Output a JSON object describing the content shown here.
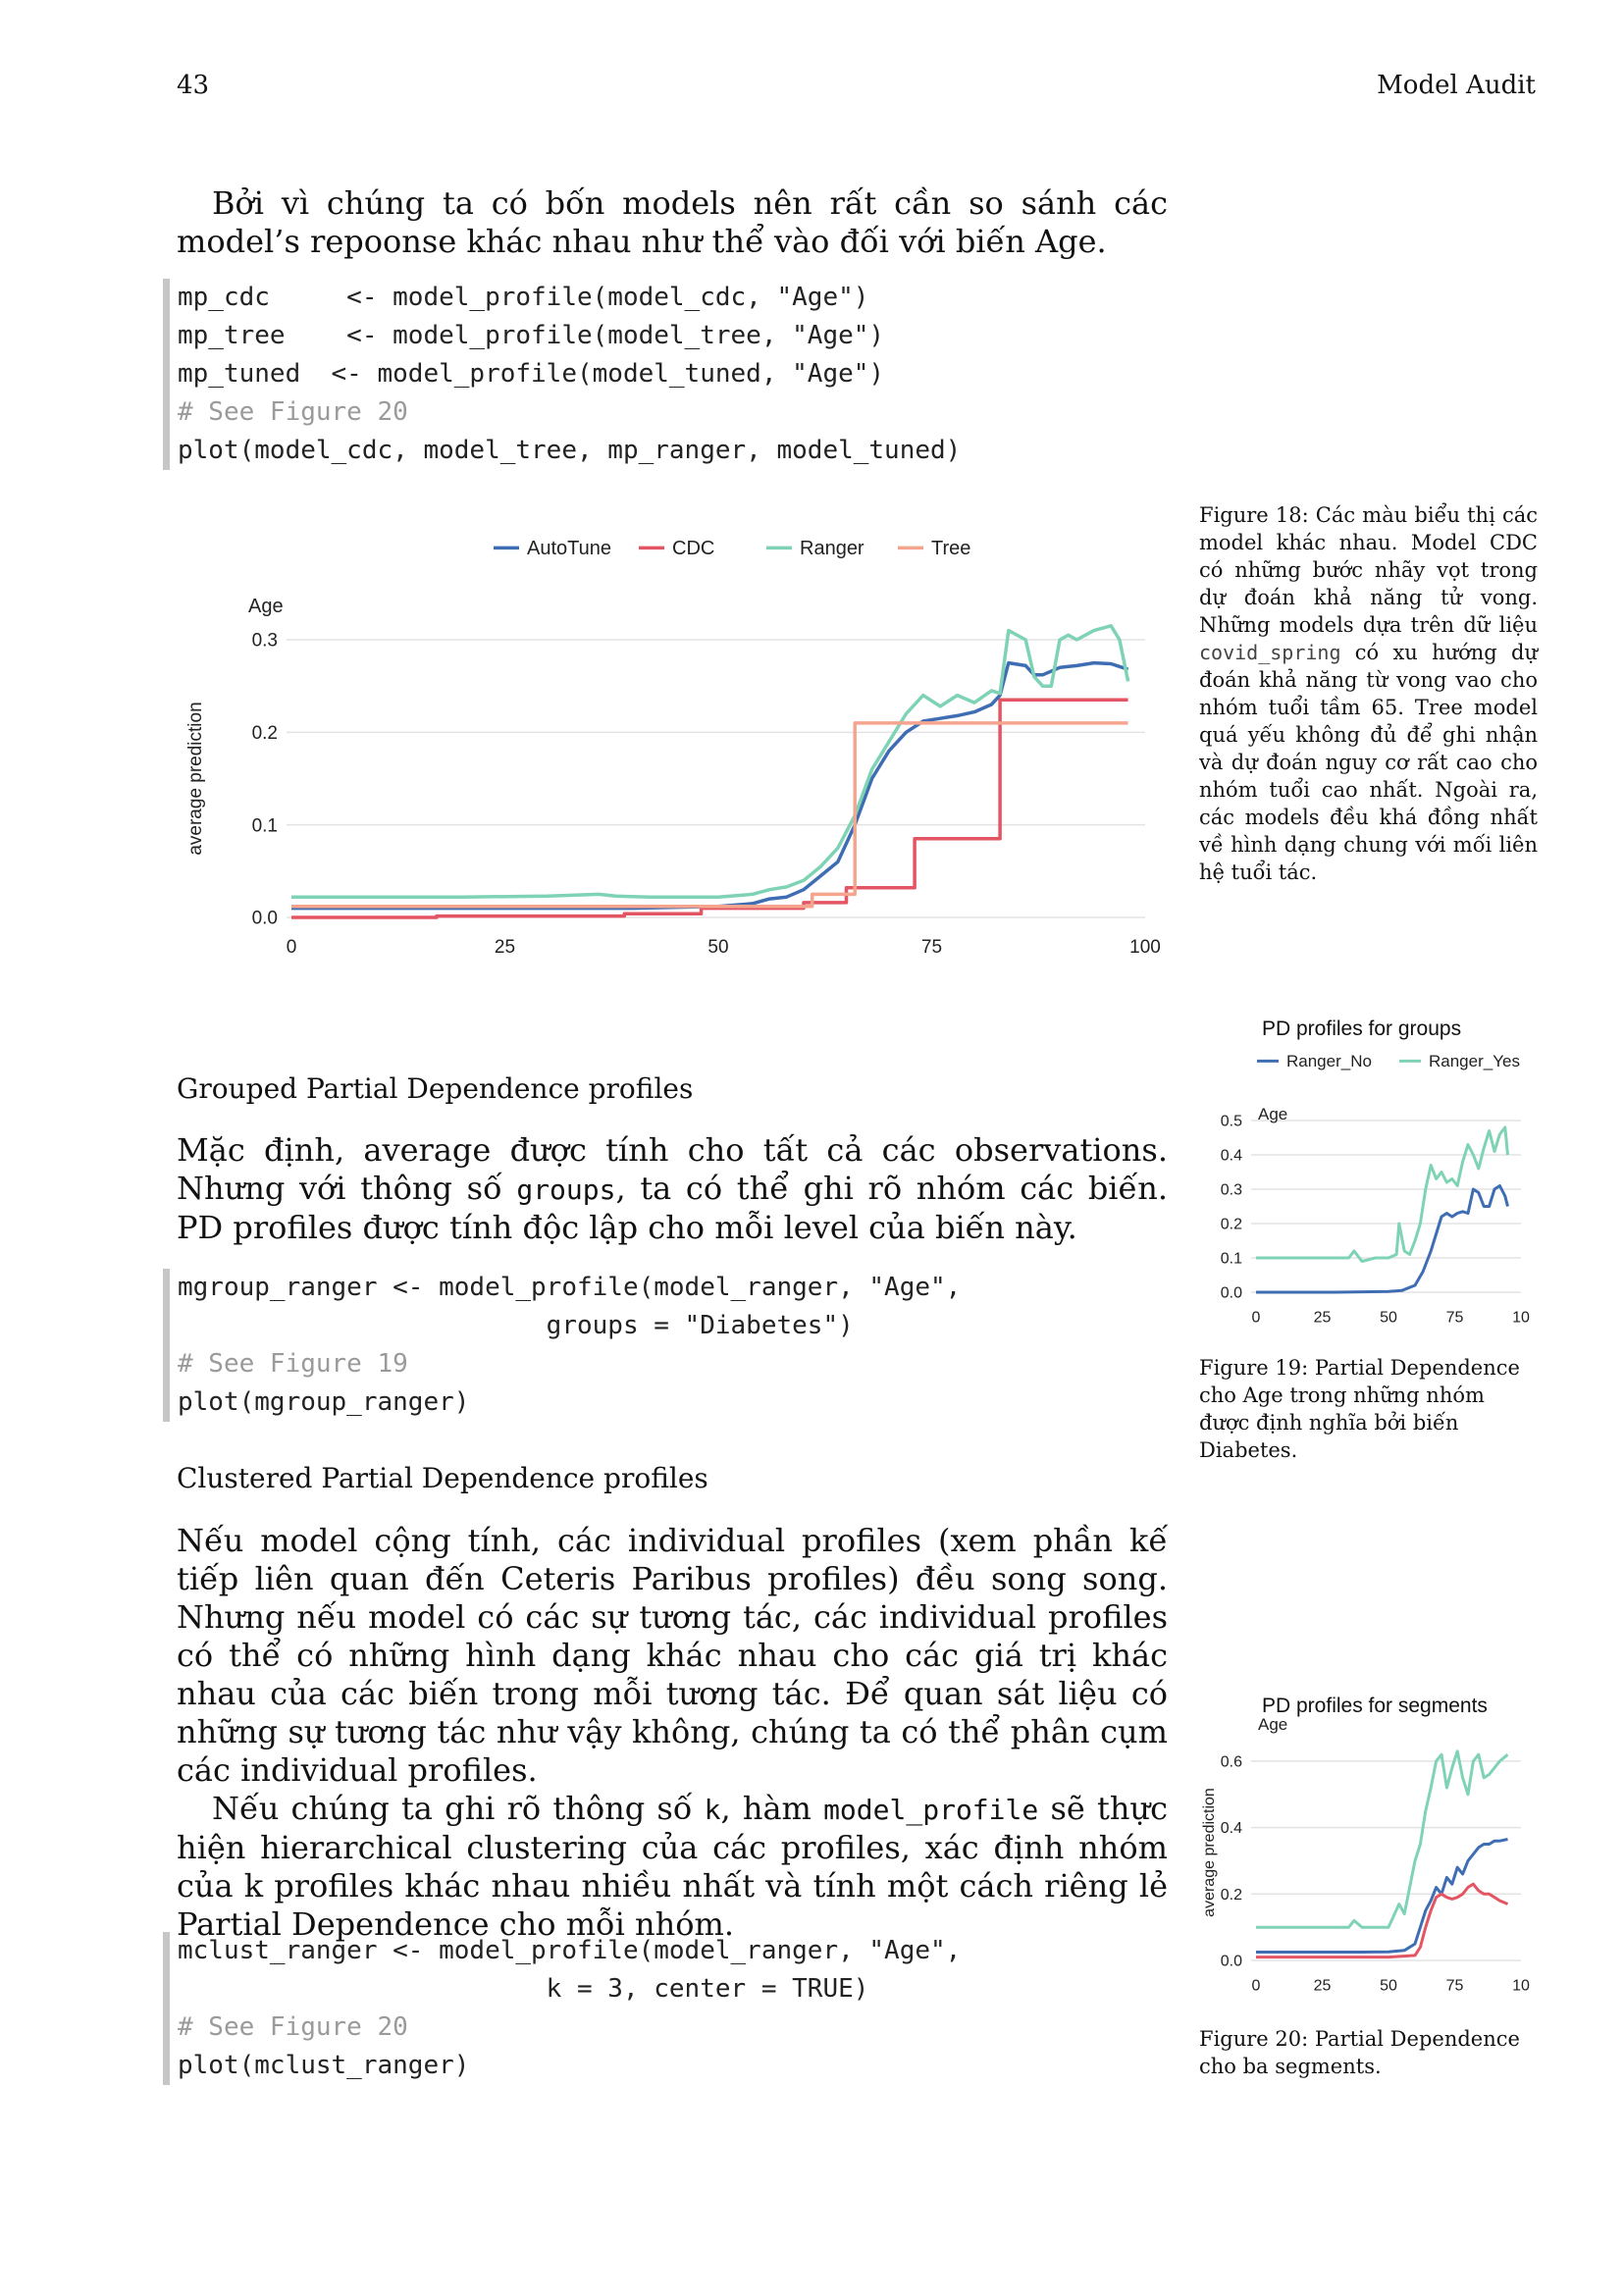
{
  "header": {
    "page_number": "43",
    "section": "Model Audit"
  },
  "intro": {
    "text": "Bởi vì chúng ta có bốn models nên rất cần so sánh các model’s repoonse khác nhau như thể vào đối với biến Age."
  },
  "code1": [
    {
      "text": "mp_cdc     <- model_profile(model_cdc, \"Age\")",
      "comment": false
    },
    {
      "text": "mp_tree    <- model_profile(model_tree, \"Age\")",
      "comment": false
    },
    {
      "text": "mp_tuned  <- model_profile(model_tuned, \"Age\")",
      "comment": false
    },
    {
      "text": "# See Figure 20",
      "comment": true
    },
    {
      "text": "plot(model_cdc, model_tree, mp_ranger, model_tuned)",
      "comment": false
    }
  ],
  "fig18": {
    "caption_prefix": "Figure 18: Các màu biểu thị các model khác nhau. Model CDC có những bước nhãy vọt trong dự đoán khả năng tử vong. Những models dựa trên dữ liệu ",
    "caption_code": "covid_spring",
    "caption_suffix": " có xu hướng dự đoán khả năng từ vong vao cho nhóm tuổi tầm 65. Tree model quá yếu không đủ để ghi nhận và dự đoán nguy cơ rất cao cho nhóm tuổi cao nhất. Ngoài ra, các models đều khá đồng nhất về hình dạng chung với mối liên hệ tuổi tác."
  },
  "section1": {
    "heading": "Grouped Partial Dependence profiles",
    "p_before": "Mặc định, average được tính cho tất cả các observations. Nhưng với thông số ",
    "p_code": "groups",
    "p_after": ", ta có thể ghi rõ nhóm các biến. PD profiles được tính độc lập cho mỗi level của biến này."
  },
  "code2": [
    {
      "text": "mgroup_ranger <- model_profile(model_ranger, \"Age\",",
      "comment": false
    },
    {
      "text": "                        groups = \"Diabetes\")",
      "comment": false
    },
    {
      "text": "# See Figure 19",
      "comment": true
    },
    {
      "text": "plot(mgroup_ranger)",
      "comment": false
    }
  ],
  "fig19": {
    "caption": "Figure 19: Partial Dependence cho Age trong những nhóm được định nghĩa bởi biến Diabetes."
  },
  "section2": {
    "heading": "Clustered Partial Dependence profiles",
    "p1": "Nếu model cộng tính, các individual profiles (xem phần kế tiếp liên quan đến Ceteris Paribus profiles) đều song song. Nhưng nếu model có các sự tương tác, các individual profiles có thể có những hình dạng khác nhau cho các giá trị khác nhau của các biến trong mỗi tương tác. Để quan sát liệu có những sự tương tác như vậy không, chúng ta có thể phân cụm các individual profiles.",
    "p2_a": "Nếu chúng ta ghi rõ thông số ",
    "p2_code1": "k",
    "p2_b": ", hàm ",
    "p2_code2": "model_profile",
    "p2_c": " sẽ thực hiện hierarchical clustering của các profiles, xác định nhóm của k profiles khác nhau nhiều nhất và tính một cách riêng lẻ Partial Dependence cho mỗi nhóm."
  },
  "code3": [
    {
      "text": "mclust_ranger <- model_profile(model_ranger, \"Age\",",
      "comment": false
    },
    {
      "text": "                        k = 3, center = TRUE)",
      "comment": false
    },
    {
      "text": "# See Figure 20",
      "comment": true
    },
    {
      "text": "plot(mclust_ranger)",
      "comment": false
    }
  ],
  "fig20": {
    "caption": "Figure 20: Partial Dependence cho ba segments."
  },
  "chart_data": [
    {
      "type": "line",
      "title": "",
      "subtitle": "Age",
      "xlabel": "",
      "ylabel": "average prediction",
      "xlim": [
        0,
        100
      ],
      "ylim": [
        0,
        0.3
      ],
      "xticks": [
        "0",
        "25",
        "50",
        "75",
        "100"
      ],
      "yticks": [
        "0.0",
        "0.1",
        "0.2",
        "0.3"
      ],
      "grid": true,
      "legend": "top",
      "series": [
        {
          "name": "AutoTune",
          "color": "#3f6db3",
          "x": [
            0,
            20,
            40,
            50,
            54,
            56,
            58,
            60,
            62,
            64,
            66,
            68,
            70,
            72,
            74,
            76,
            78,
            80,
            82,
            83,
            84,
            86,
            87,
            88,
            90,
            92,
            94,
            96,
            98
          ],
          "y": [
            0.01,
            0.01,
            0.01,
            0.012,
            0.015,
            0.02,
            0.022,
            0.03,
            0.045,
            0.06,
            0.1,
            0.15,
            0.18,
            0.2,
            0.212,
            0.215,
            0.218,
            0.222,
            0.23,
            0.24,
            0.275,
            0.272,
            0.262,
            0.262,
            0.27,
            0.272,
            0.275,
            0.274,
            0.268
          ]
        },
        {
          "name": "CDC",
          "color": "#e45563",
          "x": [
            0,
            17,
            17,
            39,
            39,
            48,
            48,
            60,
            60,
            65,
            65,
            73,
            73,
            83,
            83,
            98
          ],
          "y": [
            0.0,
            0.0,
            0.0015,
            0.0015,
            0.004,
            0.004,
            0.01,
            0.01,
            0.016,
            0.016,
            0.032,
            0.032,
            0.085,
            0.085,
            0.235,
            0.235
          ]
        },
        {
          "name": "Ranger",
          "color": "#7fd3b5",
          "x": [
            0,
            20,
            30,
            36,
            38,
            42,
            50,
            54,
            56,
            58,
            60,
            62,
            64,
            66,
            68,
            70,
            72,
            74,
            76,
            78,
            80,
            82,
            83,
            84,
            85,
            86,
            87,
            88,
            89,
            90,
            91,
            92,
            94,
            96,
            97,
            98
          ],
          "y": [
            0.022,
            0.022,
            0.023,
            0.025,
            0.023,
            0.022,
            0.022,
            0.025,
            0.03,
            0.033,
            0.04,
            0.055,
            0.075,
            0.11,
            0.16,
            0.19,
            0.22,
            0.24,
            0.228,
            0.24,
            0.232,
            0.245,
            0.242,
            0.31,
            0.305,
            0.3,
            0.26,
            0.25,
            0.25,
            0.3,
            0.305,
            0.3,
            0.31,
            0.315,
            0.3,
            0.255
          ]
        },
        {
          "name": "Tree",
          "color": "#f5a58e",
          "x": [
            0,
            61,
            61,
            66,
            66,
            98
          ],
          "y": [
            0.012,
            0.012,
            0.025,
            0.025,
            0.21,
            0.21
          ]
        }
      ]
    },
    {
      "type": "line",
      "title": "PD profiles for groups",
      "subtitle": "Age",
      "xlim": [
        0,
        100
      ],
      "ylim": [
        0,
        0.5
      ],
      "xticks": [
        "0",
        "25",
        "50",
        "75",
        "10"
      ],
      "yticks": [
        "0.0",
        "0.1",
        "0.2",
        "0.3",
        "0.4",
        "0.5"
      ],
      "grid": true,
      "legend": "top",
      "series": [
        {
          "name": "Ranger_No",
          "color": "#3f6db3",
          "x": [
            0,
            30,
            50,
            55,
            60,
            63,
            66,
            68,
            70,
            72,
            74,
            76,
            78,
            80,
            82,
            84,
            86,
            88,
            90,
            92,
            94,
            95
          ],
          "y": [
            0.0,
            0.0,
            0.002,
            0.005,
            0.02,
            0.06,
            0.12,
            0.17,
            0.22,
            0.23,
            0.22,
            0.23,
            0.235,
            0.23,
            0.3,
            0.29,
            0.25,
            0.25,
            0.3,
            0.31,
            0.28,
            0.25
          ]
        },
        {
          "name": "Ranger_Yes",
          "color": "#7fd3b5",
          "x": [
            0,
            30,
            35,
            37,
            40,
            45,
            50,
            53,
            54,
            56,
            58,
            60,
            62,
            64,
            66,
            68,
            70,
            72,
            74,
            76,
            78,
            80,
            82,
            84,
            86,
            88,
            90,
            92,
            94,
            95
          ],
          "y": [
            0.1,
            0.1,
            0.1,
            0.12,
            0.09,
            0.1,
            0.1,
            0.11,
            0.2,
            0.12,
            0.11,
            0.15,
            0.2,
            0.3,
            0.37,
            0.33,
            0.35,
            0.32,
            0.33,
            0.31,
            0.38,
            0.43,
            0.4,
            0.36,
            0.42,
            0.47,
            0.41,
            0.46,
            0.48,
            0.4
          ]
        }
      ]
    },
    {
      "type": "line",
      "title": "PD profiles for segments",
      "subtitle": "Age",
      "ylabel": "average prediction",
      "xlim": [
        0,
        100
      ],
      "ylim": [
        0,
        0.65
      ],
      "xticks": [
        "0",
        "25",
        "50",
        "75",
        "10"
      ],
      "yticks": [
        "0.0",
        "0.2",
        "0.4",
        "0.6"
      ],
      "grid": true,
      "legend": "none",
      "series": [
        {
          "name": "",
          "color": "#7fd3b5",
          "x": [
            0,
            35,
            37,
            40,
            50,
            54,
            56,
            58,
            60,
            62,
            64,
            66,
            68,
            70,
            72,
            74,
            76,
            78,
            80,
            82,
            84,
            86,
            88,
            90,
            92,
            95
          ],
          "y": [
            0.1,
            0.1,
            0.12,
            0.1,
            0.1,
            0.17,
            0.14,
            0.22,
            0.3,
            0.35,
            0.45,
            0.52,
            0.6,
            0.62,
            0.52,
            0.58,
            0.63,
            0.55,
            0.5,
            0.6,
            0.62,
            0.55,
            0.56,
            0.58,
            0.6,
            0.62
          ]
        },
        {
          "name": "",
          "color": "#3f6db3",
          "x": [
            0,
            40,
            50,
            56,
            60,
            62,
            64,
            66,
            68,
            70,
            72,
            74,
            76,
            78,
            80,
            82,
            84,
            86,
            88,
            90,
            92,
            95
          ],
          "y": [
            0.025,
            0.025,
            0.026,
            0.03,
            0.05,
            0.1,
            0.15,
            0.18,
            0.22,
            0.2,
            0.25,
            0.23,
            0.28,
            0.26,
            0.3,
            0.32,
            0.34,
            0.35,
            0.35,
            0.36,
            0.36,
            0.365
          ]
        },
        {
          "name": "",
          "color": "#e45563",
          "x": [
            0,
            50,
            60,
            62,
            64,
            66,
            68,
            70,
            72,
            74,
            76,
            78,
            80,
            82,
            84,
            86,
            88,
            90,
            92,
            95
          ],
          "y": [
            0.01,
            0.01,
            0.015,
            0.04,
            0.1,
            0.15,
            0.19,
            0.2,
            0.19,
            0.185,
            0.19,
            0.2,
            0.22,
            0.23,
            0.21,
            0.2,
            0.2,
            0.19,
            0.18,
            0.17
          ]
        }
      ]
    }
  ]
}
